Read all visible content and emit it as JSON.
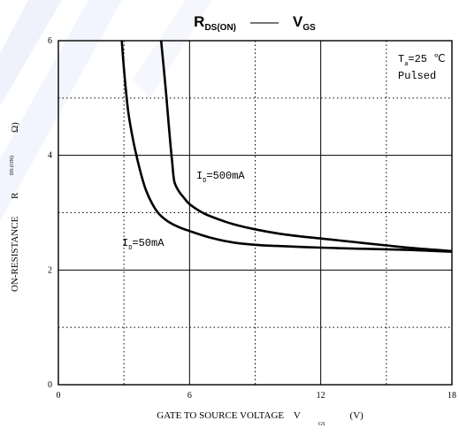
{
  "chart_data": {
    "type": "line",
    "title": {
      "left_main": "R",
      "left_sub": "DS(ON)",
      "separator": "——",
      "right_main": "V",
      "right_sub": "GS"
    },
    "xlabel": {
      "text": "GATE TO SOURCE VOLTAGE    V",
      "sub": "GS",
      "unit": "(V)"
    },
    "ylabel": {
      "text": "ON-RESISTANCE",
      "symbol": "R",
      "sub": "DS (ON)",
      "unit": "Ω)"
    },
    "xlim": [
      0,
      18
    ],
    "ylim": [
      0,
      6
    ],
    "x_ticks": [
      {
        "value": 0,
        "label": "0"
      },
      {
        "value": 6,
        "label": "6"
      },
      {
        "value": 12,
        "label": "12"
      },
      {
        "value": 18,
        "label": "18"
      }
    ],
    "y_ticks": [
      {
        "value": 0,
        "label": "0"
      },
      {
        "value": 2,
        "label": "2"
      },
      {
        "value": 4,
        "label": "4"
      },
      {
        "value": 6,
        "label": "6"
      }
    ],
    "grid_solid_x": [
      6,
      12
    ],
    "grid_dotted_x": [
      3,
      9,
      15
    ],
    "grid_solid_y": [
      2,
      4
    ],
    "grid_dotted_y": [
      1,
      3,
      5
    ],
    "conditions": {
      "line1_main": "T",
      "line1_sub": "a",
      "line1_rest": "=25 ℃",
      "line2": "Pulsed"
    },
    "series": [
      {
        "name_main": "I",
        "name_sub": "D",
        "name_rest": "=500mA",
        "x": [
          4.7,
          4.8,
          4.9,
          5.0,
          5.1,
          5.2,
          5.3,
          5.5,
          5.7,
          6.0,
          6.5,
          7.0,
          8.0,
          9.0,
          10.0,
          11.0,
          12.0,
          13.0,
          14.0,
          15.0,
          16.0,
          17.0,
          18.0
        ],
        "y": [
          6.0,
          5.6,
          5.2,
          4.75,
          4.3,
          3.9,
          3.55,
          3.38,
          3.28,
          3.15,
          3.02,
          2.93,
          2.8,
          2.71,
          2.64,
          2.59,
          2.55,
          2.51,
          2.47,
          2.43,
          2.39,
          2.36,
          2.33
        ]
      },
      {
        "name_main": "I",
        "name_sub": "D",
        "name_rest": "=50mA",
        "x": [
          2.9,
          3.0,
          3.1,
          3.2,
          3.4,
          3.6,
          3.8,
          4.0,
          4.3,
          4.6,
          5.0,
          5.5,
          6.0,
          7.0,
          8.0,
          9.0,
          10.0,
          12.0,
          14.0,
          16.0,
          18.0
        ],
        "y": [
          6.0,
          5.5,
          5.1,
          4.75,
          4.3,
          3.95,
          3.65,
          3.4,
          3.15,
          2.98,
          2.85,
          2.75,
          2.68,
          2.56,
          2.48,
          2.44,
          2.42,
          2.39,
          2.37,
          2.35,
          2.32
        ]
      }
    ]
  }
}
